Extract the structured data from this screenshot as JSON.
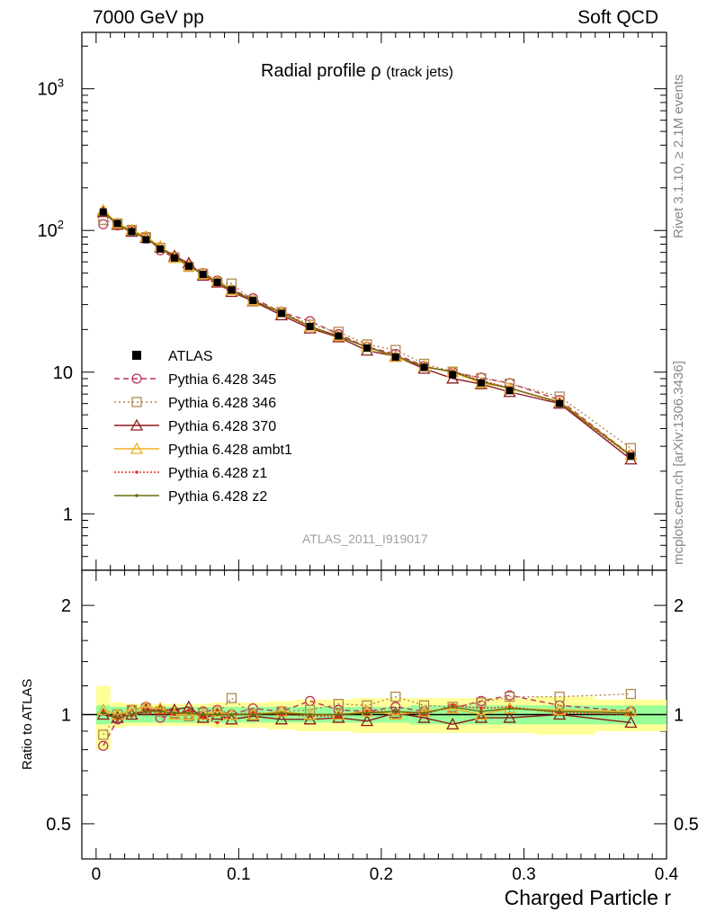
{
  "header": {
    "left": "7000 GeV pp",
    "right": "Soft QCD"
  },
  "side_labels": {
    "rivet": "Rivet 3.1.10, ≥ 2.1M events",
    "mcplots": "mcplots.cern.ch [arXiv:1306.3436]"
  },
  "chart_data": {
    "type": "line",
    "title": "Radial profile",
    "title_symbol": "ρ",
    "title_suffix": "(track jets)",
    "watermark": "ATLAS_2011_I919017",
    "xlabel": "Charged Particle r",
    "ylabel_ratio": "Ratio to ATLAS",
    "xlim": [
      -0.01,
      0.4
    ],
    "ylim_main": [
      0.4,
      2500
    ],
    "yscale_main": "log",
    "ylim_ratio": [
      0.4,
      2.5
    ],
    "yscale_ratio": "log",
    "x_ticks": [
      "0",
      "0.1",
      "0.2",
      "0.3",
      "0.4"
    ],
    "y_ticks_main": [
      "1",
      "10",
      "10^2",
      "10^3"
    ],
    "y_ticks_ratio": [
      "0.5",
      "1",
      "2"
    ],
    "legend_position": "left-middle",
    "x": [
      0.005,
      0.015,
      0.025,
      0.035,
      0.045,
      0.055,
      0.065,
      0.075,
      0.085,
      0.095,
      0.11,
      0.13,
      0.15,
      0.17,
      0.19,
      0.21,
      0.23,
      0.25,
      0.27,
      0.29,
      0.325,
      0.375
    ],
    "data": {
      "name": "ATLAS",
      "values": [
        135,
        112,
        98,
        86,
        74,
        64,
        56,
        49,
        43,
        38,
        32,
        26,
        21,
        18,
        14.8,
        12.8,
        10.8,
        9.6,
        8.4,
        7.4,
        6.0,
        2.55
      ]
    },
    "series": [
      {
        "name": "Pythia 6.428 345",
        "color": "#b8345a",
        "dash": "6,4",
        "marker": "circle",
        "ratio": [
          0.82,
          0.97,
          1.03,
          1.05,
          0.98,
          1.0,
          1.0,
          1.02,
          1.03,
          1.0,
          1.04,
          1.02,
          1.09,
          1.03,
          1.02,
          1.05,
          1.02,
          1.04,
          1.09,
          1.13,
          1.06,
          1.02
        ]
      },
      {
        "name": "Pythia 6.428 346",
        "color": "#b08850",
        "dash": "2,3",
        "marker": "square",
        "ratio": [
          0.88,
          1.0,
          1.03,
          1.04,
          1.02,
          1.01,
          0.99,
          1.01,
          1.0,
          1.11,
          1.0,
          1.02,
          1.03,
          1.07,
          1.06,
          1.12,
          1.06,
          1.05,
          1.08,
          1.12,
          1.12,
          1.14
        ]
      },
      {
        "name": "Pythia 6.428 370",
        "color": "#8b1a1a",
        "dash": "",
        "marker": "triangle",
        "ratio": [
          1.0,
          0.98,
          1.0,
          1.03,
          1.03,
          1.03,
          1.05,
          0.98,
          1.0,
          0.97,
          0.99,
          0.97,
          0.97,
          0.98,
          0.96,
          1.01,
          0.98,
          0.94,
          0.98,
          0.98,
          1.0,
          0.95
        ]
      },
      {
        "name": "Pythia 6.428 ambt1",
        "color": "#f0b020",
        "dash": "",
        "marker": "triangle",
        "ratio": [
          1.03,
          1.0,
          1.03,
          1.05,
          1.04,
          1.0,
          1.0,
          1.0,
          1.02,
          1.0,
          1.0,
          1.02,
          1.0,
          1.0,
          1.02,
          1.0,
          1.02,
          1.04,
          1.0,
          1.04,
          1.03,
          1.02
        ]
      },
      {
        "name": "Pythia 6.428 z1",
        "color": "#e03020",
        "dash": "2,2",
        "marker": "dot",
        "ratio": [
          1.02,
          0.97,
          0.99,
          1.03,
          1.02,
          1.0,
          1.03,
          0.98,
          0.95,
          1.0,
          1.01,
          1.0,
          0.99,
          0.99,
          1.02,
          1.02,
          1.0,
          1.06,
          1.04,
          1.05,
          1.01,
          1.0
        ]
      },
      {
        "name": "Pythia 6.428 z2",
        "color": "#6b6b10",
        "dash": "",
        "marker": "dot",
        "ratio": [
          1.01,
          0.98,
          1.0,
          1.02,
          1.02,
          1.01,
          1.01,
          1.0,
          1.0,
          1.0,
          1.0,
          1.01,
          1.0,
          1.0,
          1.01,
          1.02,
          1.01,
          1.05,
          1.02,
          1.04,
          1.02,
          1.01
        ]
      }
    ],
    "ratio_band_inner": [
      0.06,
      0.05,
      0.05,
      0.05,
      0.05,
      0.05,
      0.05,
      0.05,
      0.05,
      0.05,
      0.05,
      0.05,
      0.05,
      0.05,
      0.05,
      0.05,
      0.06,
      0.06,
      0.06,
      0.06,
      0.06,
      0.06
    ],
    "ratio_band_outer": [
      0.2,
      0.08,
      0.07,
      0.07,
      0.07,
      0.07,
      0.07,
      0.07,
      0.08,
      0.08,
      0.08,
      0.09,
      0.1,
      0.1,
      0.11,
      0.11,
      0.11,
      0.11,
      0.11,
      0.11,
      0.12,
      0.1
    ]
  }
}
